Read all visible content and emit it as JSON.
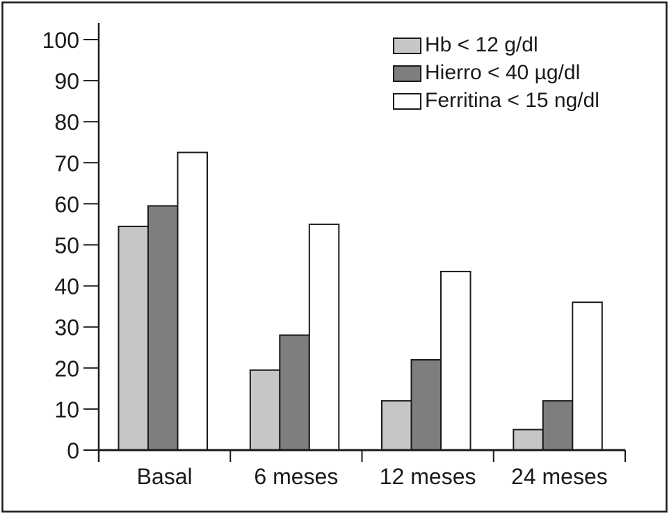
{
  "chart_data": {
    "type": "bar",
    "title": "",
    "xlabel": "",
    "ylabel": "",
    "categories": [
      "Basal",
      "6 meses",
      "12 meses",
      "24 meses"
    ],
    "series": [
      {
        "name": "Hb < 12 g/dl",
        "color": "#c6c6c6",
        "values": [
          54.5,
          19.5,
          12,
          5
        ]
      },
      {
        "name": "Hierro < 40 µg/dl",
        "color": "#7e7e7e",
        "values": [
          59.5,
          28,
          22,
          12
        ]
      },
      {
        "name": "Ferritina < 15 ng/dl",
        "color": "#ffffff",
        "values": [
          72.5,
          55,
          43.5,
          36
        ]
      }
    ],
    "ylim": [
      0,
      100
    ],
    "yticks": [
      0,
      10,
      20,
      30,
      40,
      50,
      60,
      70,
      80,
      90,
      100
    ],
    "grid": false,
    "legend_position": "top-right",
    "axis_color": "#1a1a1a",
    "frame_color": "#1a1a1a",
    "background_color": "#ffffff"
  }
}
